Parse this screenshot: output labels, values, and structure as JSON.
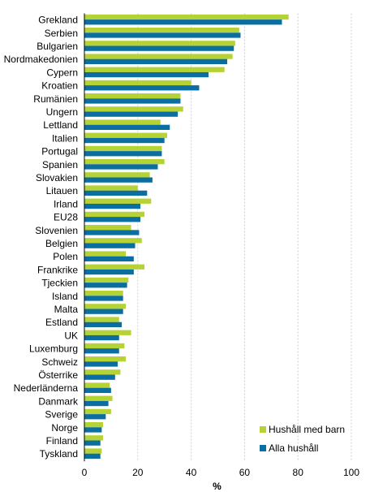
{
  "chart_data": {
    "type": "bar",
    "orientation": "horizontal",
    "categories": [
      "Grekland",
      "Serbien",
      "Bulgarien",
      "Nordmakedonien",
      "Cypern",
      "Kroatien",
      "Rumänien",
      "Ungern",
      "Lettland",
      "Italien",
      "Portugal",
      "Spanien",
      "Slovakien",
      "Litauen",
      "Irland",
      "EU28",
      "Slovenien",
      "Belgien",
      "Polen",
      "Frankrike",
      "Tjeckien",
      "Island",
      "Malta",
      "Estland",
      "UK",
      "Luxemburg",
      "Schweiz",
      "Österrike",
      "Nederländerna",
      "Danmark",
      "Sverige",
      "Norge",
      "Finland",
      "Tyskland"
    ],
    "series": [
      {
        "name": "Hushåll med barn",
        "color": "#b5d334",
        "values": [
          76.5,
          58,
          56.5,
          55.5,
          52.5,
          40,
          36,
          37,
          28.5,
          31,
          29,
          30,
          24.5,
          20,
          25,
          22.5,
          17.5,
          21.5,
          15.5,
          22.5,
          16.5,
          14.5,
          15.5,
          13,
          17.5,
          15,
          15.5,
          13.5,
          9.5,
          10.5,
          10,
          7,
          7,
          6.5
        ]
      },
      {
        "name": "Alla hushåll",
        "color": "#0a6ea0",
        "values": [
          74,
          58.5,
          56,
          53.5,
          46.5,
          43,
          36,
          35,
          32,
          30,
          29,
          27.5,
          25.5,
          23.5,
          21,
          21,
          20.5,
          19,
          18.5,
          18.5,
          16,
          14.5,
          14.5,
          14,
          13,
          13,
          12.5,
          11.5,
          10,
          9,
          8,
          6.5,
          6,
          6
        ]
      }
    ],
    "xlabel": "%",
    "xlim": [
      0,
      100
    ],
    "xticks": [
      0,
      20,
      40,
      60,
      80,
      100
    ],
    "grid": true,
    "legend": "bottom-right"
  }
}
